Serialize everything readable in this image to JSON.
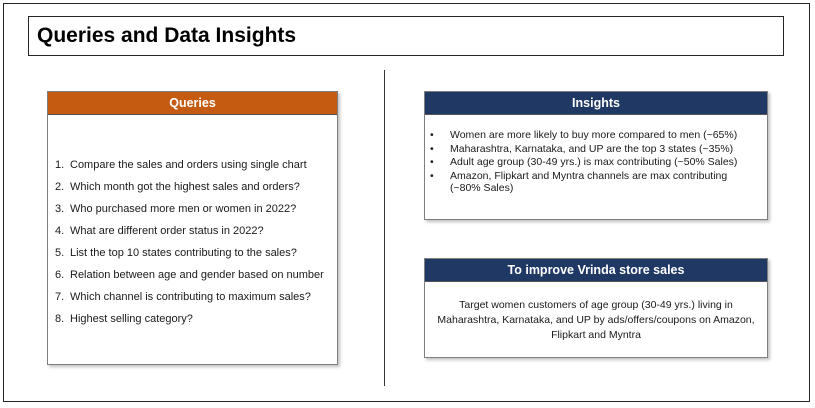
{
  "title": "Queries and Data Insights",
  "queries": {
    "heading": "Queries",
    "items": [
      {
        "num": "1.",
        "text": "Compare the sales and orders using single chart"
      },
      {
        "num": "2.",
        "text": "Which month got the highest sales and orders?"
      },
      {
        "num": "3.",
        "text": "Who purchased more men or women in 2022?"
      },
      {
        "num": "4.",
        "text": "What are different order status in 2022?"
      },
      {
        "num": "5.",
        "text": "List the top 10 states contributing to the sales?"
      },
      {
        "num": "6.",
        "text": "Relation between age and gender based on number"
      },
      {
        "num": "7.",
        "text": "Which channel is contributing to maximum sales?"
      },
      {
        "num": "8.",
        "text": "Highest selling category?"
      }
    ]
  },
  "insights": {
    "heading": "Insights",
    "bullet": "•",
    "items": [
      "Women are more likely to buy more compared to men (~65%)",
      "Maharashtra, Karnataka, and UP are the top 3 states (~35%)",
      "Adult age group (30-49 yrs.) is max contributing (~50% Sales)",
      "Amazon, Flipkart and Myntra channels are max contributing (~80% Sales)"
    ]
  },
  "improve": {
    "heading": "To improve Vrinda store sales",
    "text": "Target women customers of age group (30-49 yrs.) living in Maharashtra, Karnataka, and UP by ads/offers/coupons on Amazon, Flipkart and Myntra"
  },
  "colors": {
    "queries_header": "#c55a11",
    "insights_header": "#203864"
  }
}
